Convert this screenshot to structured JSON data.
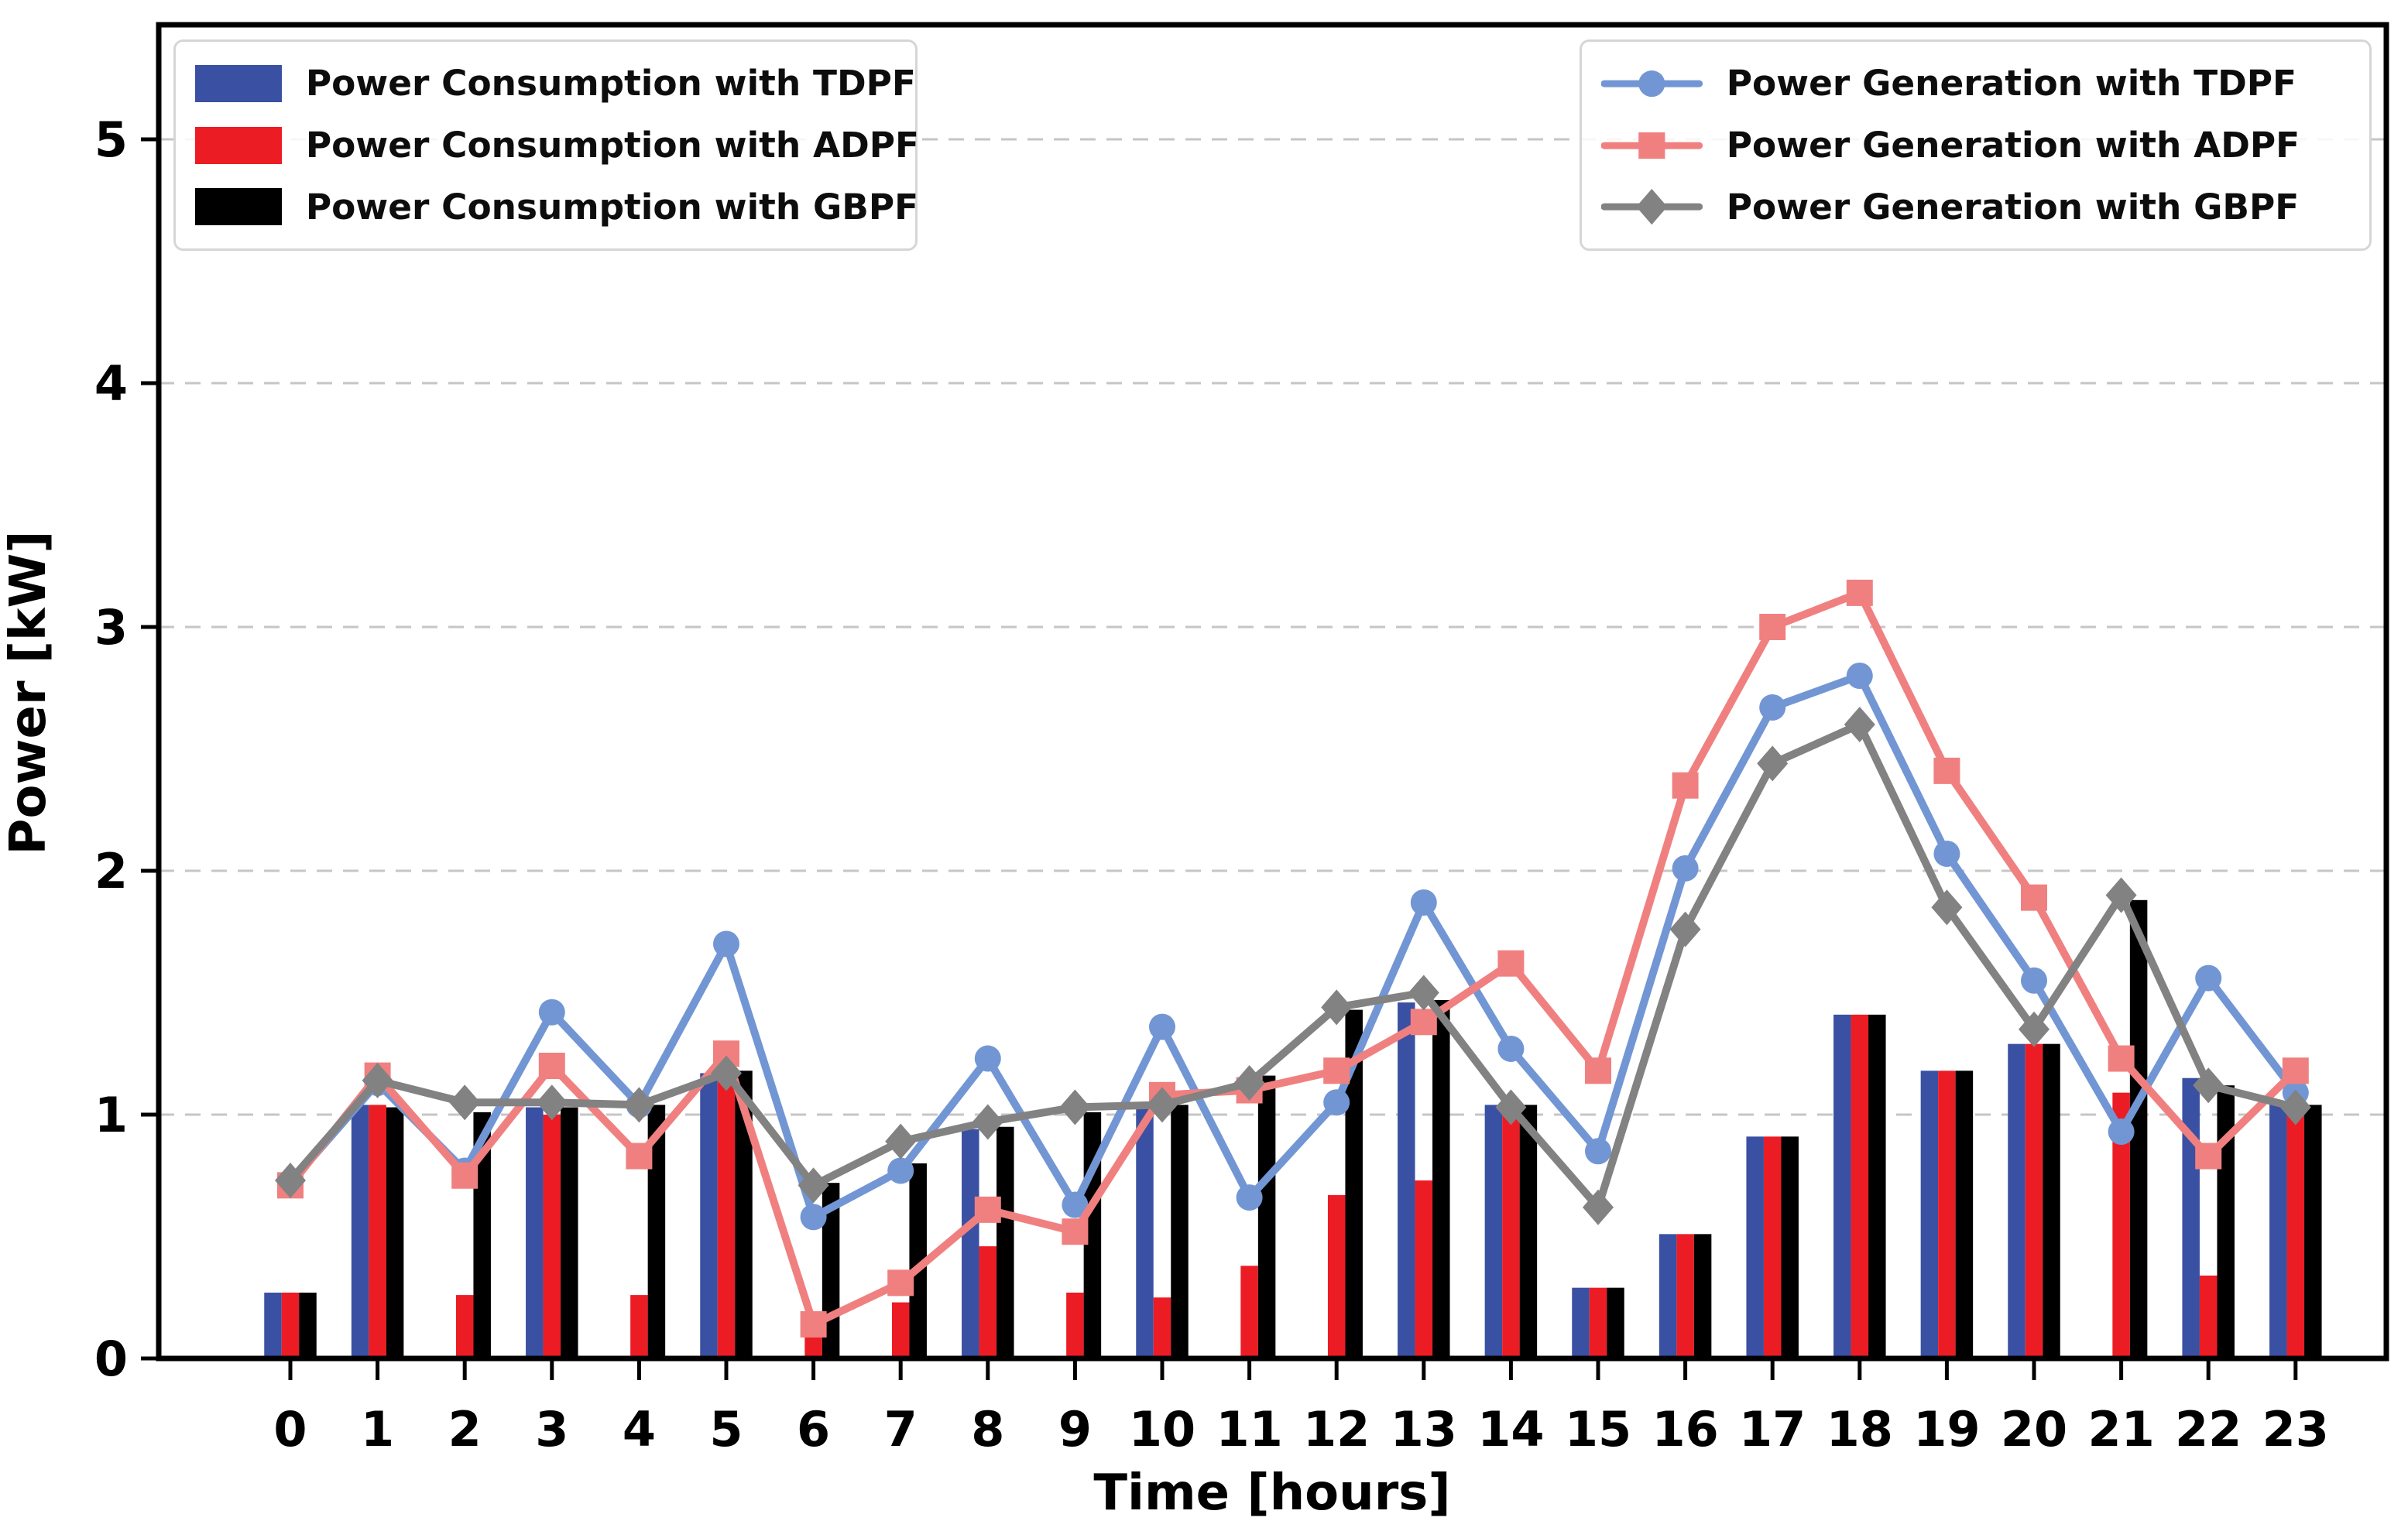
{
  "chart_data": {
    "type": "bar+line",
    "x": [
      0,
      1,
      2,
      3,
      4,
      5,
      6,
      7,
      8,
      9,
      10,
      11,
      12,
      13,
      14,
      15,
      16,
      17,
      18,
      19,
      20,
      21,
      22,
      23
    ],
    "xlabel": "Time [hours]",
    "ylabel": "Power [kW]",
    "yticks": [
      0,
      1,
      2,
      3,
      4,
      5
    ],
    "ylim": [
      0,
      5.47
    ],
    "grid": "horizontal-dashed",
    "legend_positions": [
      "upper left",
      "upper right"
    ],
    "bar_series": [
      {
        "name": "Power Consumption with TDPF",
        "color": "#3a50a2",
        "values": [
          0.27,
          1.04,
          0,
          1.03,
          0,
          1.17,
          0,
          0,
          0.94,
          0,
          1.05,
          0,
          0,
          1.46,
          1.04,
          0.29,
          0.51,
          0.91,
          1.41,
          1.18,
          1.29,
          0,
          1.15,
          1.05
        ]
      },
      {
        "name": "Power Consumption with ADPF",
        "color": "#ec1c24",
        "values": [
          0.27,
          1.04,
          0.26,
          1.0,
          0.26,
          1.16,
          0.12,
          0.23,
          0.46,
          0.27,
          0.25,
          0.38,
          0.67,
          0.73,
          1.01,
          0.29,
          0.51,
          0.91,
          1.41,
          1.18,
          1.29,
          1.09,
          0.34,
          1.01
        ]
      },
      {
        "name": "Power Consumption with GBPF",
        "color": "#000000",
        "values": [
          0.27,
          1.03,
          1.01,
          1.03,
          1.04,
          1.18,
          0.72,
          0.8,
          0.95,
          1.01,
          1.04,
          1.16,
          1.43,
          1.47,
          1.04,
          0.29,
          0.51,
          0.91,
          1.41,
          1.18,
          1.29,
          1.88,
          1.12,
          1.04
        ]
      }
    ],
    "line_series": [
      {
        "name": "Power Generation with TDPF",
        "color": "#7296d4",
        "marker": "circle",
        "values": [
          0.72,
          1.13,
          0.77,
          1.42,
          1.04,
          1.7,
          0.58,
          0.77,
          1.23,
          0.63,
          1.36,
          0.66,
          1.05,
          1.87,
          1.27,
          0.85,
          2.01,
          2.67,
          2.8,
          2.07,
          1.55,
          0.93,
          1.56,
          1.09
        ]
      },
      {
        "name": "Power Generation with ADPF",
        "color": "#f08080",
        "marker": "square",
        "values": [
          0.71,
          1.16,
          0.75,
          1.2,
          0.83,
          1.25,
          0.14,
          0.31,
          0.61,
          0.52,
          1.08,
          1.1,
          1.18,
          1.38,
          1.62,
          1.18,
          2.35,
          3.0,
          3.14,
          2.41,
          1.89,
          1.23,
          0.83,
          1.18
        ]
      },
      {
        "name": "Power Generation with GBPF",
        "color": "#828282",
        "marker": "diamond",
        "values": [
          0.73,
          1.14,
          1.05,
          1.05,
          1.04,
          1.17,
          0.71,
          0.89,
          0.97,
          1.03,
          1.04,
          1.13,
          1.44,
          1.5,
          1.03,
          0.62,
          1.76,
          2.44,
          2.6,
          1.85,
          1.35,
          1.9,
          1.12,
          1.03
        ]
      }
    ],
    "colors": {
      "grid": "#c6c6c6",
      "frame": "#000000",
      "text": "#000000"
    }
  }
}
